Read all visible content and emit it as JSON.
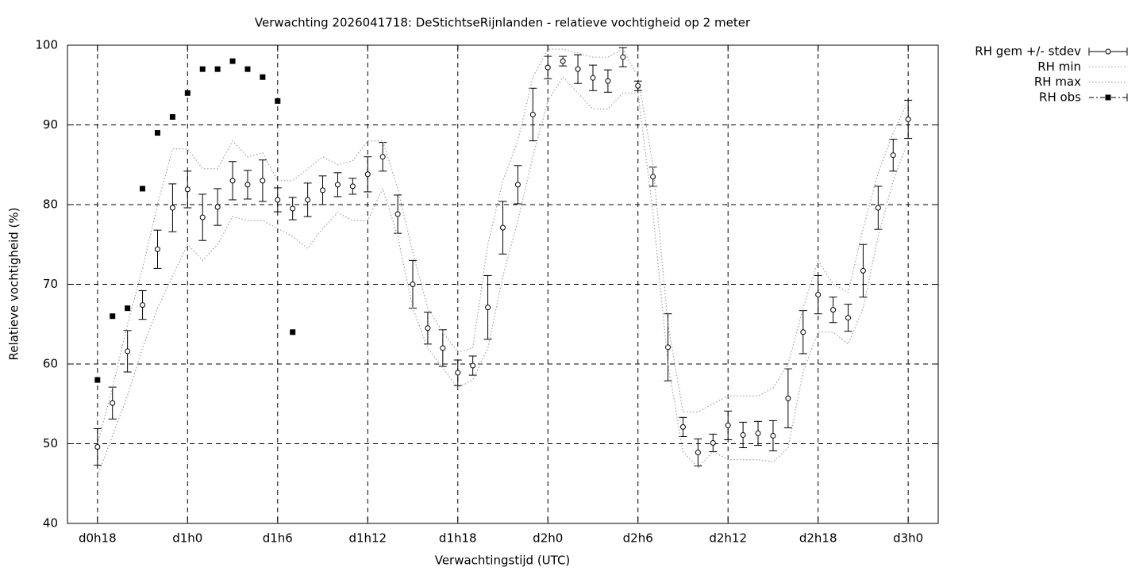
{
  "chart_data": {
    "type": "errorbar",
    "title": "Verwachting 2026041718: DeStichtseRijnlanden - relatieve vochtigheid op 2 meter",
    "xlabel": "Verwachtingstijd (UTC)",
    "ylabel": "Relatieve vochtigheid (%)",
    "x": [
      18,
      19,
      20,
      21,
      22,
      23,
      24,
      25,
      26,
      27,
      28,
      29,
      30,
      31,
      32,
      33,
      34,
      35,
      36,
      37,
      38,
      39,
      40,
      41,
      42,
      43,
      44,
      45,
      46,
      47,
      48,
      49,
      50,
      51,
      52,
      53,
      54,
      55,
      56,
      57,
      58,
      59,
      60,
      61,
      62,
      63,
      64,
      65,
      66,
      67,
      68,
      69,
      70,
      71,
      72
    ],
    "xlim": [
      16,
      74
    ],
    "xticks": [
      {
        "value": 18,
        "label": "d0h18"
      },
      {
        "value": 24,
        "label": "d1h0"
      },
      {
        "value": 30,
        "label": "d1h6"
      },
      {
        "value": 36,
        "label": "d1h12"
      },
      {
        "value": 42,
        "label": "d1h18"
      },
      {
        "value": 48,
        "label": "d2h0"
      },
      {
        "value": 54,
        "label": "d2h6"
      },
      {
        "value": 60,
        "label": "d2h12"
      },
      {
        "value": 66,
        "label": "d2h18"
      },
      {
        "value": 72,
        "label": "d3h0"
      }
    ],
    "ylim": [
      40,
      100
    ],
    "yticks": [
      40,
      50,
      60,
      70,
      80,
      90,
      100
    ],
    "grid": true,
    "legend": "outside-top-right",
    "series": [
      {
        "name": "RH gem +/- stdev",
        "style": "errorbars",
        "color": "#000000",
        "values": [
          49.6,
          55.1,
          61.6,
          67.4,
          74.4,
          79.6,
          81.9,
          78.4,
          79.7,
          83.0,
          82.5,
          83.0,
          80.6,
          79.5,
          80.6,
          81.8,
          82.5,
          82.3,
          83.8,
          86.0,
          78.8,
          70.0,
          64.5,
          62.0,
          58.9,
          59.8,
          67.1,
          77.1,
          82.5,
          91.3,
          97.2,
          98.0,
          97.0,
          95.9,
          95.5,
          98.5,
          94.9,
          83.5,
          62.1,
          52.1,
          48.9,
          50.1,
          52.3,
          51.1,
          51.3,
          51.0,
          55.7,
          64.0,
          68.7,
          66.8,
          65.8,
          71.7,
          79.6,
          86.2,
          90.7
        ],
        "error": [
          2.3,
          2.0,
          2.6,
          1.8,
          2.4,
          3.0,
          2.3,
          2.9,
          2.3,
          2.4,
          1.8,
          2.6,
          1.5,
          1.4,
          2.1,
          1.8,
          1.5,
          1.0,
          2.2,
          1.8,
          2.4,
          3.0,
          2.0,
          2.3,
          1.6,
          1.2,
          4.0,
          3.3,
          2.4,
          3.3,
          1.4,
          0.6,
          1.8,
          1.6,
          1.4,
          1.2,
          0.6,
          1.2,
          4.2,
          1.2,
          1.7,
          1.1,
          1.8,
          1.6,
          1.5,
          1.9,
          3.7,
          2.7,
          2.4,
          1.6,
          1.7,
          3.3,
          2.7,
          2.0,
          2.4
        ]
      },
      {
        "name": "RH min",
        "style": "dotted",
        "color": "#a0a0a0",
        "values": [
          46,
          51,
          56,
          62,
          67,
          71,
          75,
          73,
          75,
          78.5,
          78,
          78,
          77,
          76,
          74.5,
          77,
          79,
          78,
          78,
          82,
          76,
          67,
          62,
          59.5,
          57,
          58,
          62,
          71,
          78,
          86,
          93,
          96,
          94,
          92,
          92,
          94,
          94,
          79,
          60,
          49,
          47,
          49,
          48,
          48,
          48,
          47.7,
          49.5,
          59,
          64,
          64,
          62.5,
          67,
          76,
          83,
          88
        ]
      },
      {
        "name": "RH max",
        "style": "dotted",
        "color": "#a0a0a0",
        "values": [
          50,
          57,
          65,
          72,
          80,
          87,
          87,
          84.5,
          84.5,
          88,
          86,
          86.5,
          83,
          83,
          84.5,
          86,
          85,
          85.5,
          88,
          88,
          82,
          74,
          67,
          64,
          61.5,
          62,
          75,
          83,
          88,
          96,
          99.5,
          99.5,
          99,
          98.5,
          98.5,
          99.5,
          96,
          85,
          65,
          54,
          54,
          55,
          56,
          56,
          56,
          57,
          60,
          67,
          73,
          70,
          69,
          77,
          84,
          89,
          93
        ]
      },
      {
        "name": "RH obs",
        "style": "points",
        "color": "#000000",
        "values": [
          58,
          66,
          67,
          82,
          89,
          91,
          94,
          97,
          97,
          98,
          97,
          96,
          93,
          64,
          null,
          null,
          null,
          null,
          null,
          null,
          null,
          null,
          null,
          null,
          null,
          null,
          null,
          null,
          null,
          null,
          null,
          null,
          null,
          null,
          null,
          null,
          null,
          null,
          null,
          null,
          null,
          null,
          null,
          null,
          null,
          null,
          null,
          null,
          null,
          null,
          null,
          null,
          null,
          null,
          null
        ]
      }
    ]
  }
}
